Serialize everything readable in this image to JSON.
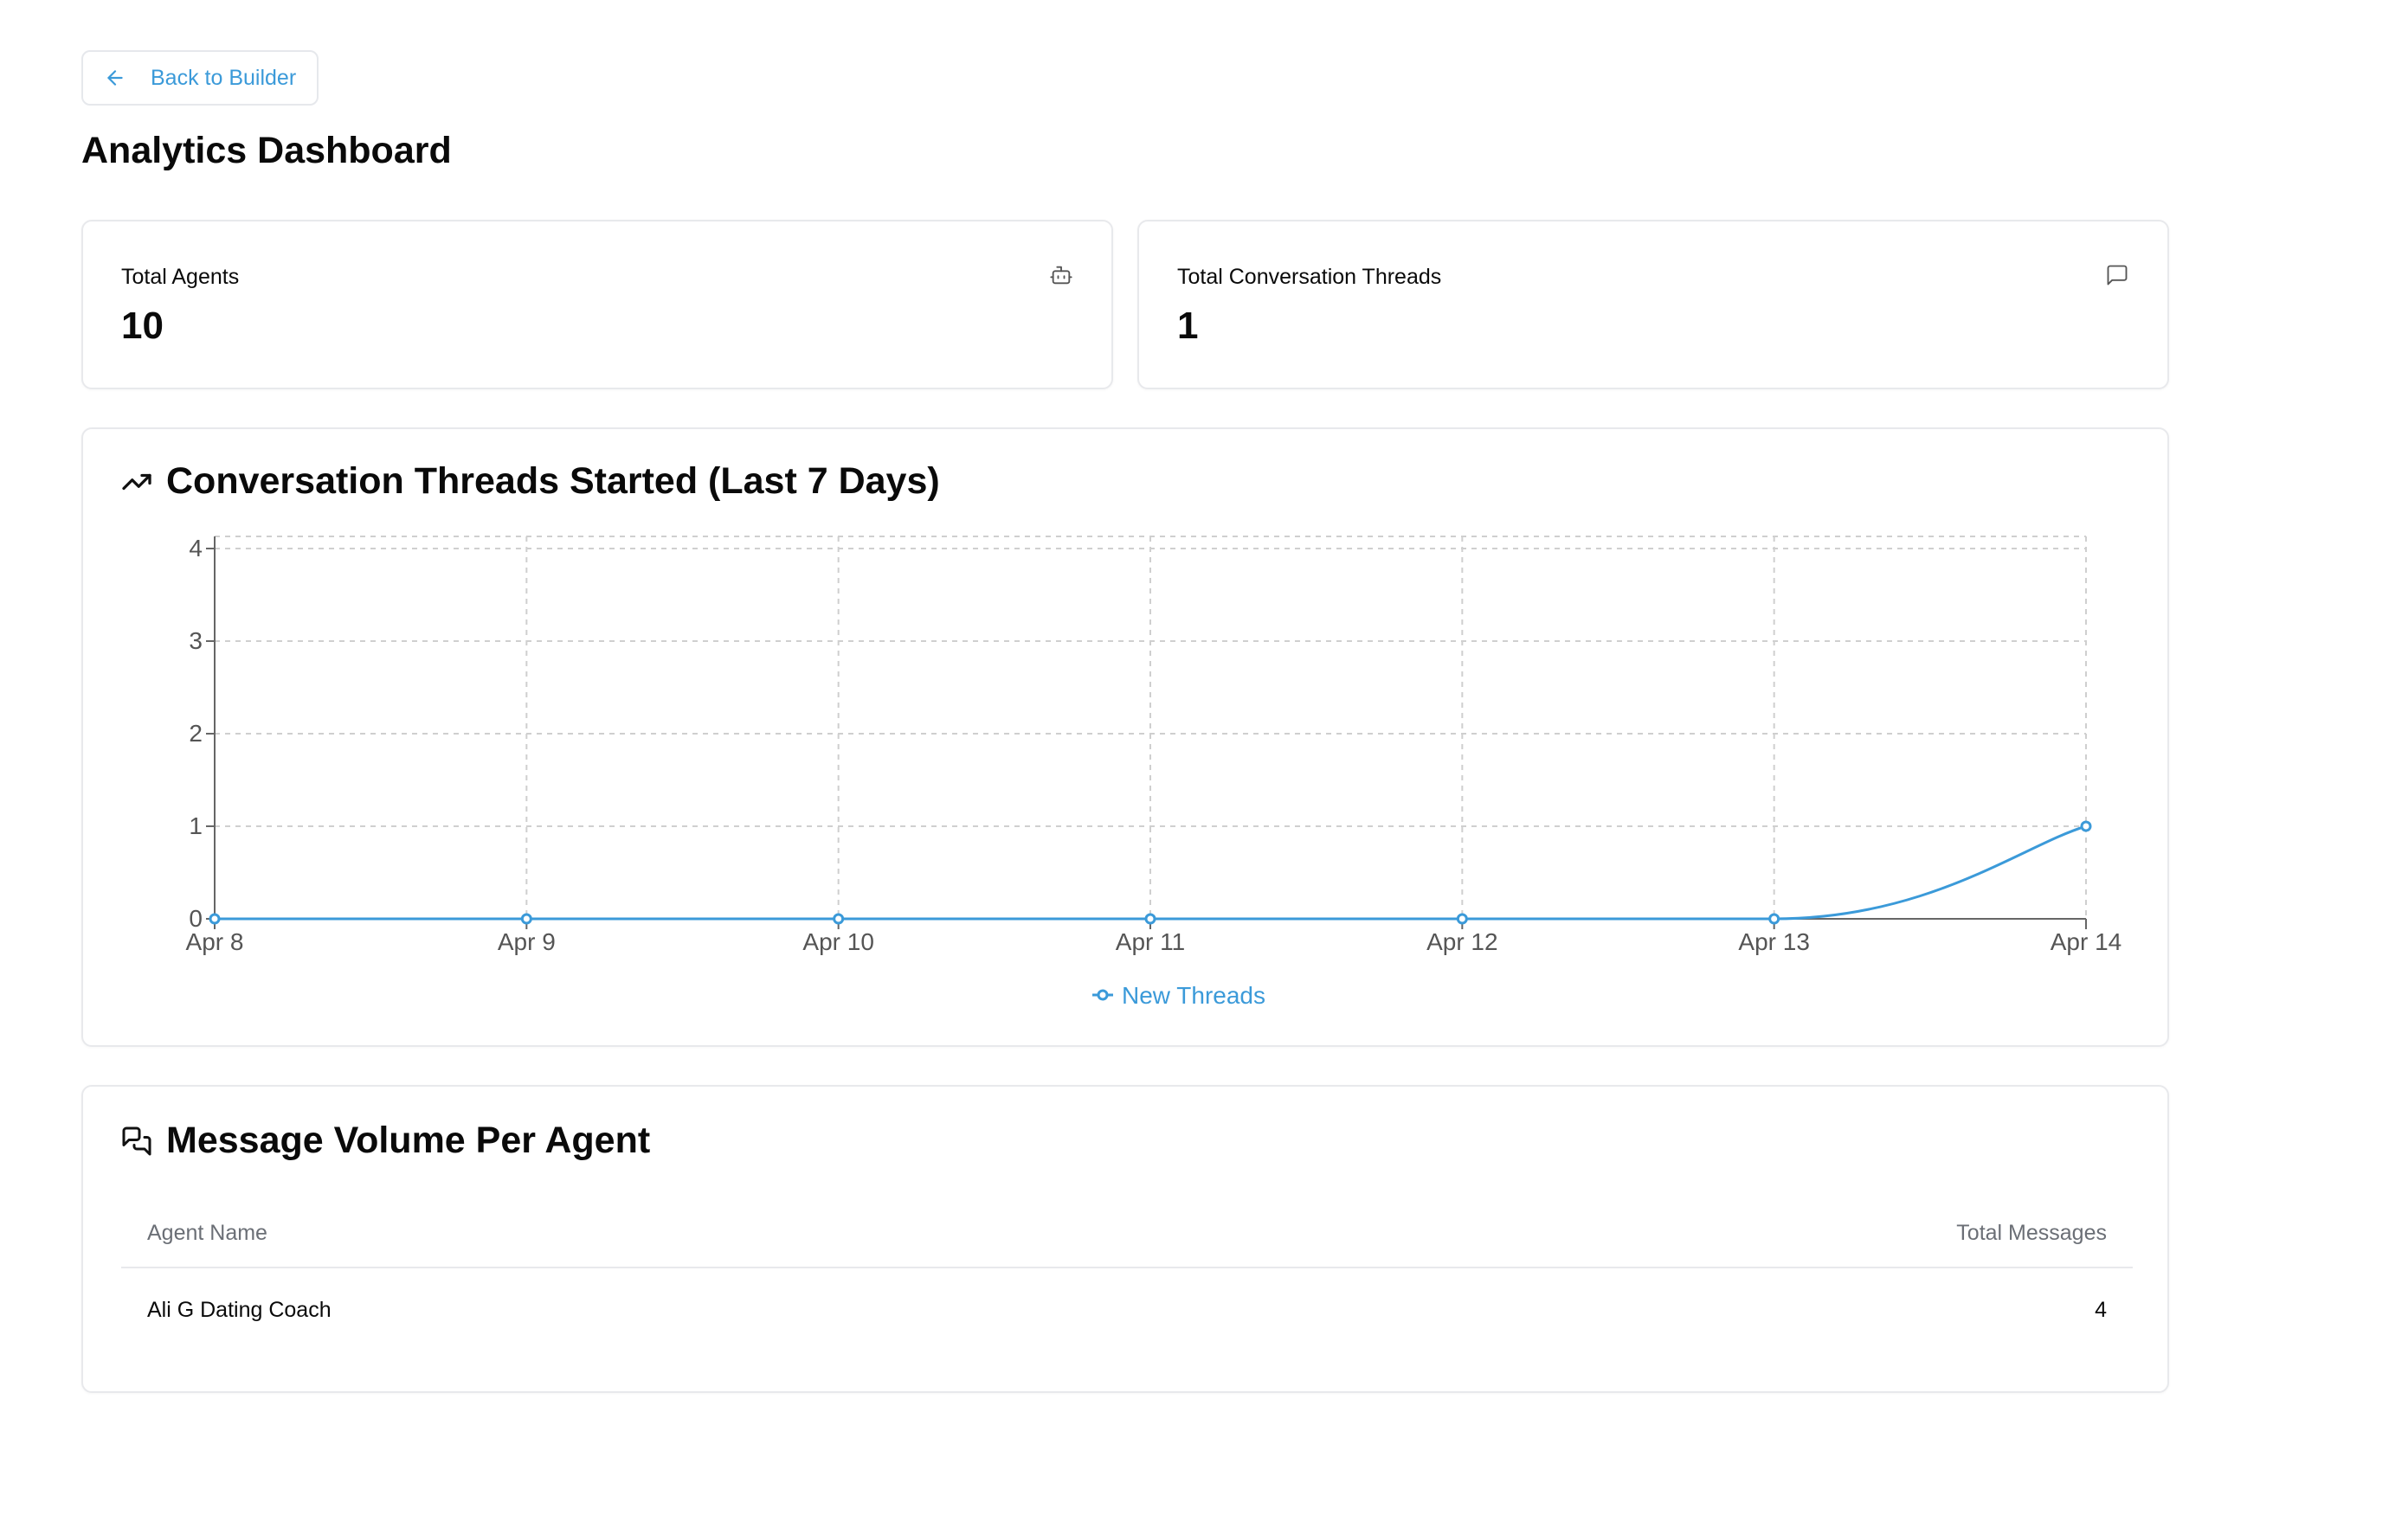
{
  "nav": {
    "back_label": "Back to Builder"
  },
  "page": {
    "title": "Analytics Dashboard"
  },
  "stats": [
    {
      "label": "Total Agents",
      "value": "10",
      "icon": "bot-icon"
    },
    {
      "label": "Total Conversation Threads",
      "value": "1",
      "icon": "message-square-icon"
    }
  ],
  "chart_section": {
    "title": "Conversation Threads Started (Last 7 Days)",
    "icon": "trending-up-icon"
  },
  "chart_data": {
    "type": "line",
    "x": [
      "Apr 8",
      "Apr 9",
      "Apr 10",
      "Apr 11",
      "Apr 12",
      "Apr 13",
      "Apr 14"
    ],
    "series": [
      {
        "name": "New Threads",
        "values": [
          0,
          0,
          0,
          0,
          0,
          0,
          1
        ],
        "color": "#3b9ad9"
      }
    ],
    "ylim": [
      0,
      4
    ],
    "yticks": [
      0,
      1,
      2,
      3,
      4
    ],
    "grid": true,
    "legend": "bottom-center"
  },
  "table_section": {
    "title": "Message Volume Per Agent",
    "icon": "messages-icon",
    "columns": [
      "Agent Name",
      "Total Messages"
    ],
    "rows": [
      {
        "agent": "Ali G Dating Coach",
        "messages": "4"
      }
    ]
  }
}
